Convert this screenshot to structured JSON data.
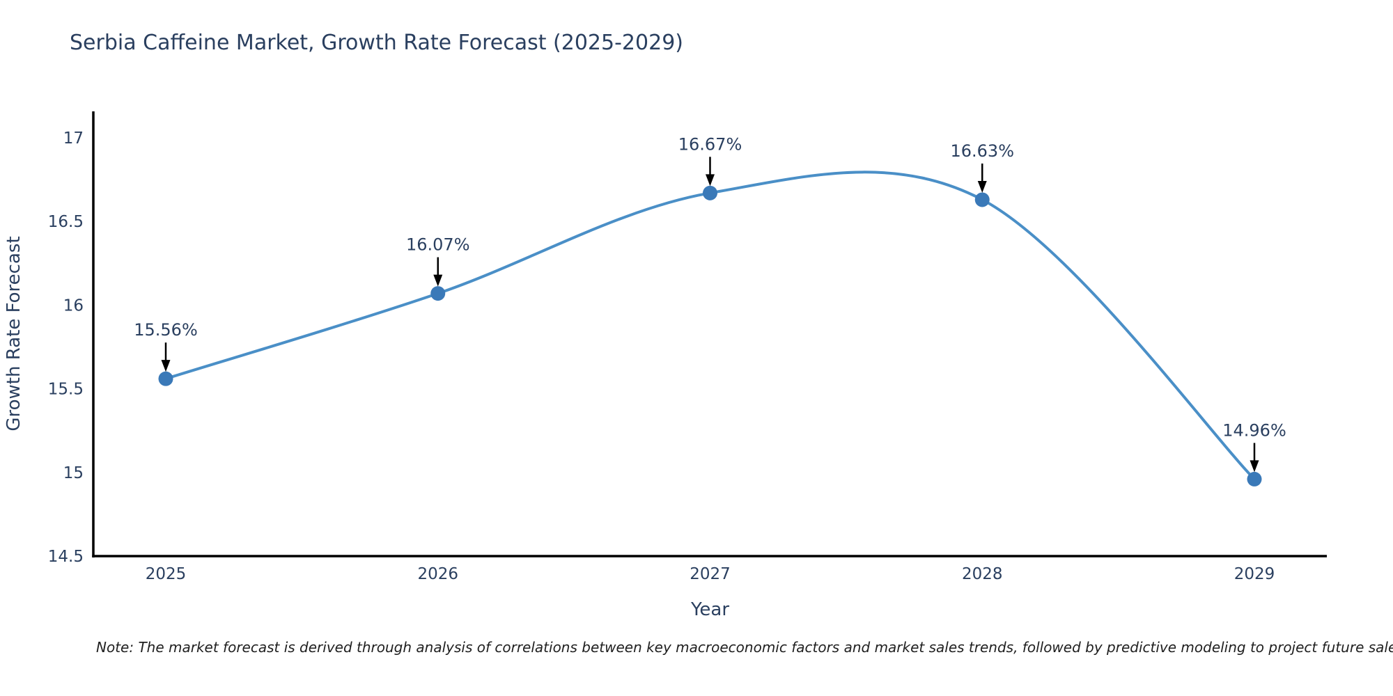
{
  "chart_data": {
    "type": "line",
    "title": "Serbia Caffeine Market, Growth Rate Forecast (2025-2029)",
    "xlabel": "Year",
    "ylabel": "Growth Rate Forecast",
    "x": [
      "2025",
      "2026",
      "2027",
      "2028",
      "2029"
    ],
    "values": [
      15.56,
      16.07,
      16.67,
      16.63,
      14.96
    ],
    "point_labels": [
      "15.56%",
      "16.07%",
      "16.67%",
      "16.63%",
      "14.96%"
    ],
    "ylim": [
      14.5,
      17
    ],
    "yticks": [
      14.5,
      15,
      15.5,
      16,
      16.5,
      17
    ],
    "ytick_labels": [
      "14.5",
      "15",
      "15.5",
      "16",
      "16.5",
      "17"
    ],
    "grid": false,
    "legend": "none",
    "line_shape": "spline",
    "colors": {
      "line": "#4a8fc7",
      "marker": "#3a79b8",
      "axis": "#000000",
      "text": "#2a3f5f",
      "annotation_arrow": "#000000"
    }
  },
  "note": {
    "text": "Note: The market forecast is derived through analysis of correlations between key macroeconomic factors and market sales trends, followed by predictive modeling to project future sales."
  }
}
